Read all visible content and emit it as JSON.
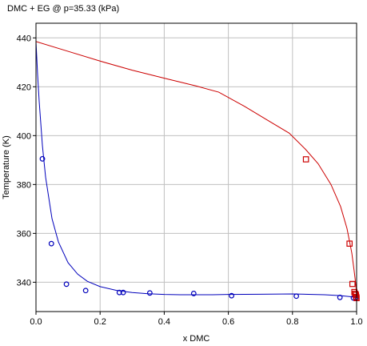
{
  "chart_data": {
    "type": "line",
    "title": "DMC + EG @ p=35.33 (kPa)",
    "xlabel": "x DMC",
    "ylabel": "Temperature (K)",
    "xlim": [
      0.0,
      1.0
    ],
    "ylim": [
      328,
      446
    ],
    "x_ticks": [
      0.0,
      0.2,
      0.4,
      0.6,
      0.8,
      1.0
    ],
    "x_tick_labels": [
      "0.0",
      "0.2",
      "0.4",
      "0.6",
      "0.8",
      "1.0"
    ],
    "y_ticks": [
      340,
      360,
      380,
      400,
      420,
      440
    ],
    "y_tick_labels": [
      "340",
      "360",
      "380",
      "400",
      "420",
      "440"
    ],
    "grid": true,
    "colors": {
      "bubble": "#0000bb",
      "dew": "#cc0000",
      "grid": "#c0c0c0"
    },
    "series": [
      {
        "role": "bubble-curve",
        "style": "line",
        "color": "#0000bb",
        "x": [
          0.0,
          0.005,
          0.01,
          0.02,
          0.03,
          0.05,
          0.07,
          0.1,
          0.13,
          0.16,
          0.2,
          0.25,
          0.3,
          0.35,
          0.4,
          0.45,
          0.5,
          0.55,
          0.6,
          0.7,
          0.8,
          0.9,
          0.95,
          0.98,
          0.995,
          1.0
        ],
        "y": [
          438.5,
          425.0,
          414.0,
          396.0,
          383.0,
          366.0,
          356.5,
          348.0,
          343.3,
          340.4,
          338.2,
          336.7,
          335.8,
          335.3,
          335.0,
          334.9,
          334.9,
          334.9,
          335.0,
          335.1,
          335.2,
          334.9,
          334.5,
          334.1,
          333.8,
          333.7
        ]
      },
      {
        "role": "dew-curve",
        "style": "line",
        "color": "#cc0000",
        "x": [
          0.0,
          0.1,
          0.2,
          0.3,
          0.4,
          0.5,
          0.57,
          0.65,
          0.72,
          0.79,
          0.84,
          0.88,
          0.92,
          0.95,
          0.97,
          0.985,
          0.993,
          0.998,
          1.0
        ],
        "y": [
          438.5,
          434.5,
          430.5,
          426.8,
          423.5,
          420.3,
          417.8,
          412.0,
          406.5,
          401.0,
          394.5,
          388.5,
          380.0,
          371.0,
          362.0,
          352.0,
          344.0,
          338.5,
          333.7
        ]
      },
      {
        "role": "bubble-points",
        "style": "circle",
        "color": "#0000bb",
        "x": [
          0.02,
          0.048,
          0.095,
          0.155,
          0.26,
          0.272,
          0.355,
          0.492,
          0.61,
          0.812,
          0.948,
          0.99,
          0.997
        ],
        "y": [
          390.5,
          355.8,
          339.2,
          336.6,
          335.8,
          335.8,
          335.6,
          335.4,
          334.5,
          334.3,
          333.8,
          333.6,
          333.5
        ]
      },
      {
        "role": "dew-points",
        "style": "square",
        "color": "#cc0000",
        "x": [
          0.842,
          0.978,
          0.987,
          0.993,
          0.996,
          0.998,
          0.999,
          1.0
        ],
        "y": [
          390.3,
          355.8,
          339.3,
          336.0,
          335.3,
          334.8,
          334.0,
          333.5
        ]
      }
    ]
  }
}
